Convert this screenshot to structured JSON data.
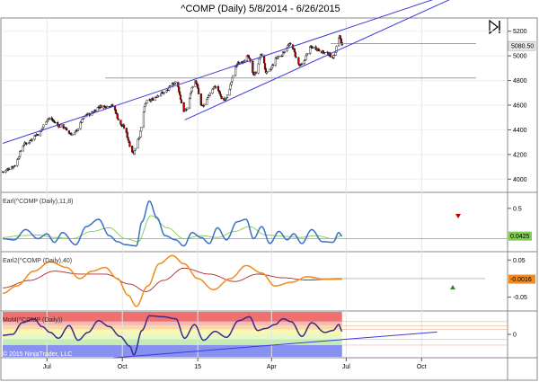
{
  "title": "^COMP (Daily)  5/8/2014 - 6/26/2015",
  "copyright": "© 2015 NinjaTrader, LLC",
  "colors": {
    "trend_line": "#3c3cdc",
    "hline": "#909090",
    "up_candle": "#ffffff",
    "down_candle": "#c00000",
    "candle_outline": "#000000",
    "ehlers_fast": "#3a6fc8",
    "ehlers_slow": "#7ccf4a",
    "ehlers2_fast": "#f28a1c",
    "ehlers2_slow": "#b02828",
    "mom_line": "#3c2a8a",
    "zone_top_red": "#f07070",
    "zone_pink": "#f9b8b8",
    "zone_orange": "#fbd7a8",
    "zone_yellow": "#fbf7b0",
    "zone_lightgreen": "#e6f7c8",
    "zone_green": "#c4ecb4",
    "zone_blue": "#8890f0",
    "price_badge": "#e8e8e8",
    "green_badge": "#7ccf4a",
    "orange_badge": "#f28a1c"
  },
  "chart_data": [
    {
      "type": "candlestick",
      "panel": "price",
      "title": "^COMP (Daily)  5/8/2014 - 6/26/2015",
      "y_ticks": [
        4000,
        4200,
        4400,
        4600,
        4800,
        5000,
        5200
      ],
      "ylim": [
        3900,
        5300
      ],
      "last_price_label": "5080.50",
      "x_ticks": [
        "Jul",
        "Oct",
        "15",
        "Apr",
        "Jul",
        "Oct"
      ],
      "start_date": "2014-05-08",
      "end_date": "2015-06-26",
      "anchors": [
        {
          "date": "2014-05-08",
          "close": 4060
        },
        {
          "date": "2014-05-20",
          "close": 4100
        },
        {
          "date": "2014-06-05",
          "close": 4290
        },
        {
          "date": "2014-06-20",
          "close": 4365
        },
        {
          "date": "2014-07-03",
          "close": 4490
        },
        {
          "date": "2014-07-18",
          "close": 4430
        },
        {
          "date": "2014-08-01",
          "close": 4365
        },
        {
          "date": "2014-08-20",
          "close": 4525
        },
        {
          "date": "2014-09-05",
          "close": 4590
        },
        {
          "date": "2014-09-18",
          "close": 4595
        },
        {
          "date": "2014-10-01",
          "close": 4430
        },
        {
          "date": "2014-10-15",
          "close": 4215
        },
        {
          "date": "2014-10-20",
          "close": 4330
        },
        {
          "date": "2014-10-31",
          "close": 4630
        },
        {
          "date": "2014-11-20",
          "close": 4700
        },
        {
          "date": "2014-12-05",
          "close": 4785
        },
        {
          "date": "2014-12-16",
          "close": 4550
        },
        {
          "date": "2014-12-29",
          "close": 4790
        },
        {
          "date": "2015-01-06",
          "close": 4590
        },
        {
          "date": "2015-01-22",
          "close": 4750
        },
        {
          "date": "2015-02-02",
          "close": 4640
        },
        {
          "date": "2015-02-20",
          "close": 4940
        },
        {
          "date": "2015-03-03",
          "close": 4990
        },
        {
          "date": "2015-03-11",
          "close": 4850
        },
        {
          "date": "2015-03-20",
          "close": 5010
        },
        {
          "date": "2015-03-26",
          "close": 4860
        },
        {
          "date": "2015-04-10",
          "close": 4995
        },
        {
          "date": "2015-04-24",
          "close": 5090
        },
        {
          "date": "2015-05-06",
          "close": 4920
        },
        {
          "date": "2015-05-20",
          "close": 5070
        },
        {
          "date": "2015-06-08",
          "close": 5020
        },
        {
          "date": "2015-06-15",
          "close": 4990
        },
        {
          "date": "2015-06-23",
          "close": 5160
        },
        {
          "date": "2015-06-26",
          "close": 5080
        }
      ],
      "trend_lines": [
        {
          "from": {
            "date": "2014-05-08",
            "value": 4290
          },
          "to": {
            "date": "2015-06-26",
            "value": 5210
          }
        },
        {
          "from": {
            "date": "2014-12-16",
            "value": 4480
          },
          "to": {
            "date": "2015-06-26",
            "value": 5060
          }
        }
      ],
      "hlines": [
        {
          "value": 4820,
          "from": "2014-09-10"
        },
        {
          "value": 5100,
          "from": "2015-06-12"
        }
      ]
    },
    {
      "type": "line",
      "panel": "ehlers",
      "label": "Earl(^COMP (Daily),11,8)",
      "y_ticks": [
        0.5
      ],
      "ylim": [
        -0.2,
        0.75
      ],
      "last_value_label": "0.0425",
      "series": [
        {
          "name": "Earl fast",
          "anchors": [
            [
              "2014-05-08",
              0.0
            ],
            [
              "2014-05-22",
              -0.02
            ],
            [
              "2014-06-05",
              0.15
            ],
            [
              "2014-06-20",
              0.0
            ],
            [
              "2014-07-01",
              0.08
            ],
            [
              "2014-07-10",
              -0.06
            ],
            [
              "2014-07-20",
              0.1
            ],
            [
              "2014-08-05",
              -0.1
            ],
            [
              "2014-08-18",
              0.2
            ],
            [
              "2014-09-02",
              0.32
            ],
            [
              "2014-09-15",
              0.05
            ],
            [
              "2014-09-25",
              -0.05
            ],
            [
              "2014-10-05",
              -0.1
            ],
            [
              "2014-10-18",
              -0.12
            ],
            [
              "2014-10-25",
              0.28
            ],
            [
              "2014-11-03",
              0.62
            ],
            [
              "2014-11-12",
              0.35
            ],
            [
              "2014-11-22",
              0.05
            ],
            [
              "2014-12-05",
              -0.02
            ],
            [
              "2014-12-15",
              -0.12
            ],
            [
              "2014-12-25",
              0.1
            ],
            [
              "2015-01-05",
              0.02
            ],
            [
              "2015-01-15",
              -0.08
            ],
            [
              "2015-01-25",
              0.18
            ],
            [
              "2015-02-05",
              -0.02
            ],
            [
              "2015-02-18",
              0.28
            ],
            [
              "2015-03-01",
              0.32
            ],
            [
              "2015-03-10",
              0.0
            ],
            [
              "2015-03-20",
              0.2
            ],
            [
              "2015-03-30",
              -0.08
            ],
            [
              "2015-04-10",
              0.12
            ],
            [
              "2015-04-20",
              -0.02
            ],
            [
              "2015-04-28",
              0.08
            ],
            [
              "2015-05-08",
              -0.08
            ],
            [
              "2015-05-20",
              0.15
            ],
            [
              "2015-06-02",
              -0.05
            ],
            [
              "2015-06-15",
              -0.06
            ],
            [
              "2015-06-22",
              0.1
            ],
            [
              "2015-06-26",
              0.0425
            ]
          ]
        },
        {
          "name": "Earl slow",
          "anchors": [
            [
              "2014-05-08",
              0.02
            ],
            [
              "2014-05-30",
              0.05
            ],
            [
              "2014-06-20",
              0.06
            ],
            [
              "2014-07-10",
              0.02
            ],
            [
              "2014-08-01",
              0.0
            ],
            [
              "2014-08-25",
              0.12
            ],
            [
              "2014-09-15",
              0.18
            ],
            [
              "2014-10-05",
              0.0
            ],
            [
              "2014-10-20",
              -0.05
            ],
            [
              "2014-11-05",
              0.38
            ],
            [
              "2014-11-25",
              0.18
            ],
            [
              "2014-12-15",
              0.0
            ],
            [
              "2015-01-05",
              0.05
            ],
            [
              "2015-01-25",
              0.02
            ],
            [
              "2015-02-15",
              0.12
            ],
            [
              "2015-03-05",
              0.2
            ],
            [
              "2015-03-25",
              0.06
            ],
            [
              "2015-04-15",
              0.04
            ],
            [
              "2015-05-05",
              0.02
            ],
            [
              "2015-05-25",
              0.05
            ],
            [
              "2015-06-15",
              0.0
            ],
            [
              "2015-06-26",
              0.05
            ]
          ]
        }
      ]
    },
    {
      "type": "line",
      "panel": "ehlers2",
      "label": "Earl2(^COMP (Daily),40)",
      "y_ticks": [
        0.05,
        -0.05
      ],
      "ylim": [
        -0.085,
        0.07
      ],
      "last_value_label": "-0.0016",
      "series": [
        {
          "name": "Earl2 fast",
          "anchors": [
            [
              "2014-05-08",
              -0.04
            ],
            [
              "2014-05-25",
              -0.02
            ],
            [
              "2014-06-15",
              0.02
            ],
            [
              "2014-07-05",
              0.045
            ],
            [
              "2014-07-25",
              0.03
            ],
            [
              "2014-08-10",
              0.0
            ],
            [
              "2014-08-25",
              0.02
            ],
            [
              "2014-09-10",
              0.03
            ],
            [
              "2014-09-25",
              0.0
            ],
            [
              "2014-10-08",
              -0.045
            ],
            [
              "2014-10-18",
              -0.075
            ],
            [
              "2014-11-01",
              -0.02
            ],
            [
              "2014-11-15",
              0.04
            ],
            [
              "2014-12-01",
              0.062
            ],
            [
              "2014-12-15",
              0.04
            ],
            [
              "2015-01-01",
              0.0
            ],
            [
              "2015-01-20",
              -0.03
            ],
            [
              "2015-02-10",
              0.0
            ],
            [
              "2015-03-01",
              0.035
            ],
            [
              "2015-03-20",
              0.015
            ],
            [
              "2015-04-05",
              -0.02
            ],
            [
              "2015-04-25",
              -0.01
            ],
            [
              "2015-05-15",
              0.005
            ],
            [
              "2015-06-05",
              -0.002
            ],
            [
              "2015-06-26",
              -0.0016
            ]
          ]
        },
        {
          "name": "Earl2 slow",
          "anchors": [
            [
              "2014-05-08",
              -0.025
            ],
            [
              "2014-06-10",
              -0.005
            ],
            [
              "2014-07-10",
              0.02
            ],
            [
              "2014-08-10",
              0.012
            ],
            [
              "2014-09-10",
              0.012
            ],
            [
              "2014-10-10",
              -0.015
            ],
            [
              "2014-10-30",
              -0.035
            ],
            [
              "2014-11-20",
              -0.005
            ],
            [
              "2014-12-15",
              0.028
            ],
            [
              "2015-01-15",
              0.012
            ],
            [
              "2015-02-15",
              -0.008
            ],
            [
              "2015-03-15",
              0.012
            ],
            [
              "2015-04-15",
              0.002
            ],
            [
              "2015-05-15",
              -0.004
            ],
            [
              "2015-06-26",
              0.0
            ]
          ]
        }
      ]
    },
    {
      "type": "line",
      "panel": "mom",
      "label": "MoM(^COMP (Daily))",
      "y_ticks": [
        0
      ],
      "ylim": [
        -1.15,
        1.15
      ],
      "series": [
        {
          "name": "MoM",
          "anchors": [
            [
              "2014-05-08",
              -0.05
            ],
            [
              "2014-05-20",
              0.0
            ],
            [
              "2014-06-01",
              0.6
            ],
            [
              "2014-06-15",
              0.8
            ],
            [
              "2014-06-25",
              0.4
            ],
            [
              "2014-07-05",
              0.1
            ],
            [
              "2014-07-15",
              -0.2
            ],
            [
              "2014-07-28",
              0.45
            ],
            [
              "2014-08-08",
              -0.3
            ],
            [
              "2014-08-20",
              0.1
            ],
            [
              "2014-09-02",
              0.7
            ],
            [
              "2014-09-15",
              0.4
            ],
            [
              "2014-09-28",
              -0.1
            ],
            [
              "2014-10-10",
              -0.6
            ],
            [
              "2014-10-15",
              -1.05
            ],
            [
              "2014-10-25",
              0.2
            ],
            [
              "2014-11-03",
              0.95
            ],
            [
              "2014-11-20",
              0.9
            ],
            [
              "2014-12-05",
              0.8
            ],
            [
              "2014-12-16",
              -0.2
            ],
            [
              "2014-12-28",
              0.5
            ],
            [
              "2015-01-08",
              -0.3
            ],
            [
              "2015-01-22",
              0.15
            ],
            [
              "2015-02-05",
              -0.15
            ],
            [
              "2015-02-20",
              0.7
            ],
            [
              "2015-03-05",
              0.9
            ],
            [
              "2015-03-15",
              0.2
            ],
            [
              "2015-03-25",
              0.3
            ],
            [
              "2015-04-05",
              0.5
            ],
            [
              "2015-04-15",
              0.8
            ],
            [
              "2015-04-25",
              0.65
            ],
            [
              "2015-05-08",
              -0.1
            ],
            [
              "2015-05-20",
              0.6
            ],
            [
              "2015-06-05",
              0.1
            ],
            [
              "2015-06-15",
              0.2
            ],
            [
              "2015-06-22",
              0.5
            ],
            [
              "2015-06-26",
              0.15
            ]
          ]
        }
      ],
      "zones": [
        {
          "from": 0.65,
          "to": 1.15,
          "color_key": "zone_top_red"
        },
        {
          "from": 0.45,
          "to": 0.65,
          "color_key": "zone_pink"
        },
        {
          "from": 0.25,
          "to": 0.45,
          "color_key": "zone_orange"
        },
        {
          "from": 0.0,
          "to": 0.25,
          "color_key": "zone_yellow"
        },
        {
          "from": -0.25,
          "to": 0.0,
          "color_key": "zone_lightgreen"
        },
        {
          "from": -0.55,
          "to": -0.25,
          "color_key": "zone_green"
        },
        {
          "from": -1.15,
          "to": -0.55,
          "color_key": "zone_blue"
        }
      ],
      "trend_line": {
        "from": {
          "date": "2014-09-20",
          "value": -1.2
        },
        "to": {
          "date": "2015-10-20",
          "value": 0.12
        }
      }
    }
  ]
}
